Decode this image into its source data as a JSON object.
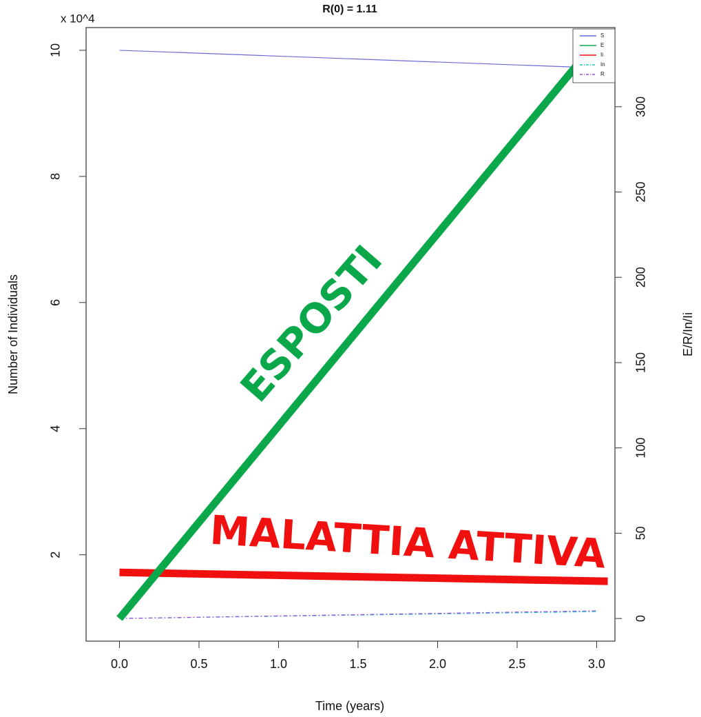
{
  "chart_data": {
    "type": "line",
    "title": "R(0) = 1.11",
    "y_multiplier": "x 10^4",
    "xlabel": "Time (years)",
    "ylabel": "Number of Individuals",
    "y2label": "E/R/In/Ii",
    "xlim": [
      -0.21,
      3.115
    ],
    "xticks": [
      {
        "value": 0,
        "label": "0.0"
      },
      0.5,
      {
        "value": 1,
        "label": "1.0"
      },
      1.5,
      {
        "value": 2,
        "label": "2.0"
      },
      2.5,
      {
        "value": 3,
        "label": "3.0"
      }
    ],
    "ylim": [
      0.63,
      10.36
    ],
    "yticks": [
      2,
      4,
      6,
      8,
      10
    ],
    "y2lim": [
      -13.3,
      346.4
    ],
    "y2ticks": [
      0,
      50,
      100,
      150,
      200,
      250,
      300
    ],
    "series": [
      {
        "name": "S",
        "color": "#6a6ad8",
        "axis": "y",
        "x": [
          0,
          2.9
        ],
        "values": [
          10,
          9.73
        ],
        "width": 1.2
      },
      {
        "name": "E",
        "color": "#0aa84a",
        "axis": "y2",
        "x": [
          0,
          2.89
        ],
        "values": [
          0,
          326
        ],
        "width": 11
      },
      {
        "name": "Ii",
        "color": "#f01010",
        "axis": "y2",
        "x": [
          0,
          3.07
        ],
        "values": [
          27,
          21.8
        ],
        "width": 11
      },
      {
        "name": "In",
        "color": "#22c8d8",
        "axis": "y2",
        "x": [
          0,
          3
        ],
        "values": [
          0,
          4
        ],
        "width": 1.2,
        "dash": "6 3 2 3"
      },
      {
        "name": "R",
        "color": "#9a4ad8",
        "axis": "y2",
        "x": [
          0,
          3
        ],
        "values": [
          0,
          4.5
        ],
        "width": 1.2,
        "dash": "6 3 2 3"
      }
    ],
    "annotations": [
      {
        "text": "ESPOSTI",
        "color": "#0aa84a"
      },
      {
        "text": "MALATTIA ATTIVA",
        "color": "#f01010"
      }
    ]
  }
}
